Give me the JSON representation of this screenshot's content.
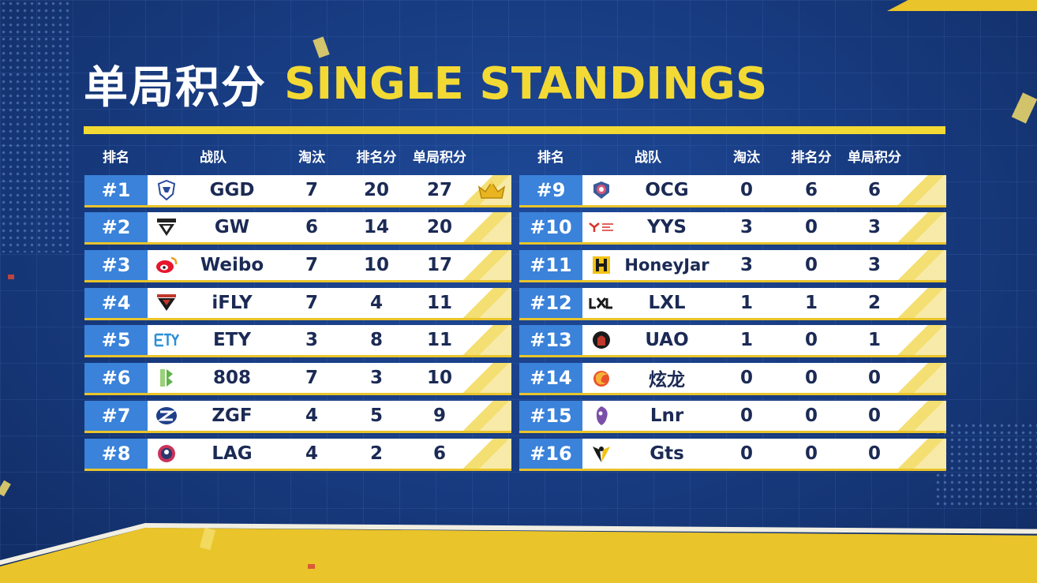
{
  "title": {
    "cn": "单局积分",
    "en": "SINGLE STANDINGS"
  },
  "headers": {
    "rank": "排名",
    "team": "战队",
    "kills": "淘汰",
    "placement": "排名分",
    "total": "单局积分"
  },
  "colors": {
    "accent": "#f3d934",
    "rank_bg": "#3a82da",
    "background": "#17397c",
    "text": "#1b2a55"
  },
  "left": [
    {
      "rank": "#1",
      "logo": "ggd-logo-icon",
      "team": "GGD",
      "kills": "7",
      "placement": "20",
      "total": "27",
      "crown": true
    },
    {
      "rank": "#2",
      "logo": "gw-logo-icon",
      "team": "GW",
      "kills": "6",
      "placement": "14",
      "total": "20"
    },
    {
      "rank": "#3",
      "logo": "weibo-logo-icon",
      "team": "Weibo",
      "kills": "7",
      "placement": "10",
      "total": "17"
    },
    {
      "rank": "#4",
      "logo": "ifly-logo-icon",
      "team": "iFLY",
      "kills": "7",
      "placement": "4",
      "total": "11"
    },
    {
      "rank": "#5",
      "logo": "ety-logo-icon",
      "team": "ETY",
      "kills": "3",
      "placement": "8",
      "total": "11"
    },
    {
      "rank": "#6",
      "logo": "808-logo-icon",
      "team": "808",
      "kills": "7",
      "placement": "3",
      "total": "10"
    },
    {
      "rank": "#7",
      "logo": "zgf-logo-icon",
      "team": "ZGF",
      "kills": "4",
      "placement": "5",
      "total": "9"
    },
    {
      "rank": "#8",
      "logo": "lag-logo-icon",
      "team": "LAG",
      "kills": "4",
      "placement": "2",
      "total": "6"
    }
  ],
  "right": [
    {
      "rank": "#9",
      "logo": "ocg-logo-icon",
      "team": "OCG",
      "kills": "0",
      "placement": "6",
      "total": "6"
    },
    {
      "rank": "#10",
      "logo": "yys-logo-icon",
      "team": "YYS",
      "kills": "3",
      "placement": "0",
      "total": "3"
    },
    {
      "rank": "#11",
      "logo": "honeyjar-logo-icon",
      "team": "HoneyJar",
      "kills": "3",
      "placement": "0",
      "total": "3"
    },
    {
      "rank": "#12",
      "logo": "lxl-logo-icon",
      "team": "LXL",
      "kills": "1",
      "placement": "1",
      "total": "2"
    },
    {
      "rank": "#13",
      "logo": "uao-logo-icon",
      "team": "UAO",
      "kills": "1",
      "placement": "0",
      "total": "1"
    },
    {
      "rank": "#14",
      "logo": "xuanlong-logo-icon",
      "team": "炫龙",
      "kills": "0",
      "placement": "0",
      "total": "0"
    },
    {
      "rank": "#15",
      "logo": "lnr-logo-icon",
      "team": "Lnr",
      "kills": "0",
      "placement": "0",
      "total": "0"
    },
    {
      "rank": "#16",
      "logo": "gts-logo-icon",
      "team": "Gts",
      "kills": "0",
      "placement": "0",
      "total": "0"
    }
  ]
}
